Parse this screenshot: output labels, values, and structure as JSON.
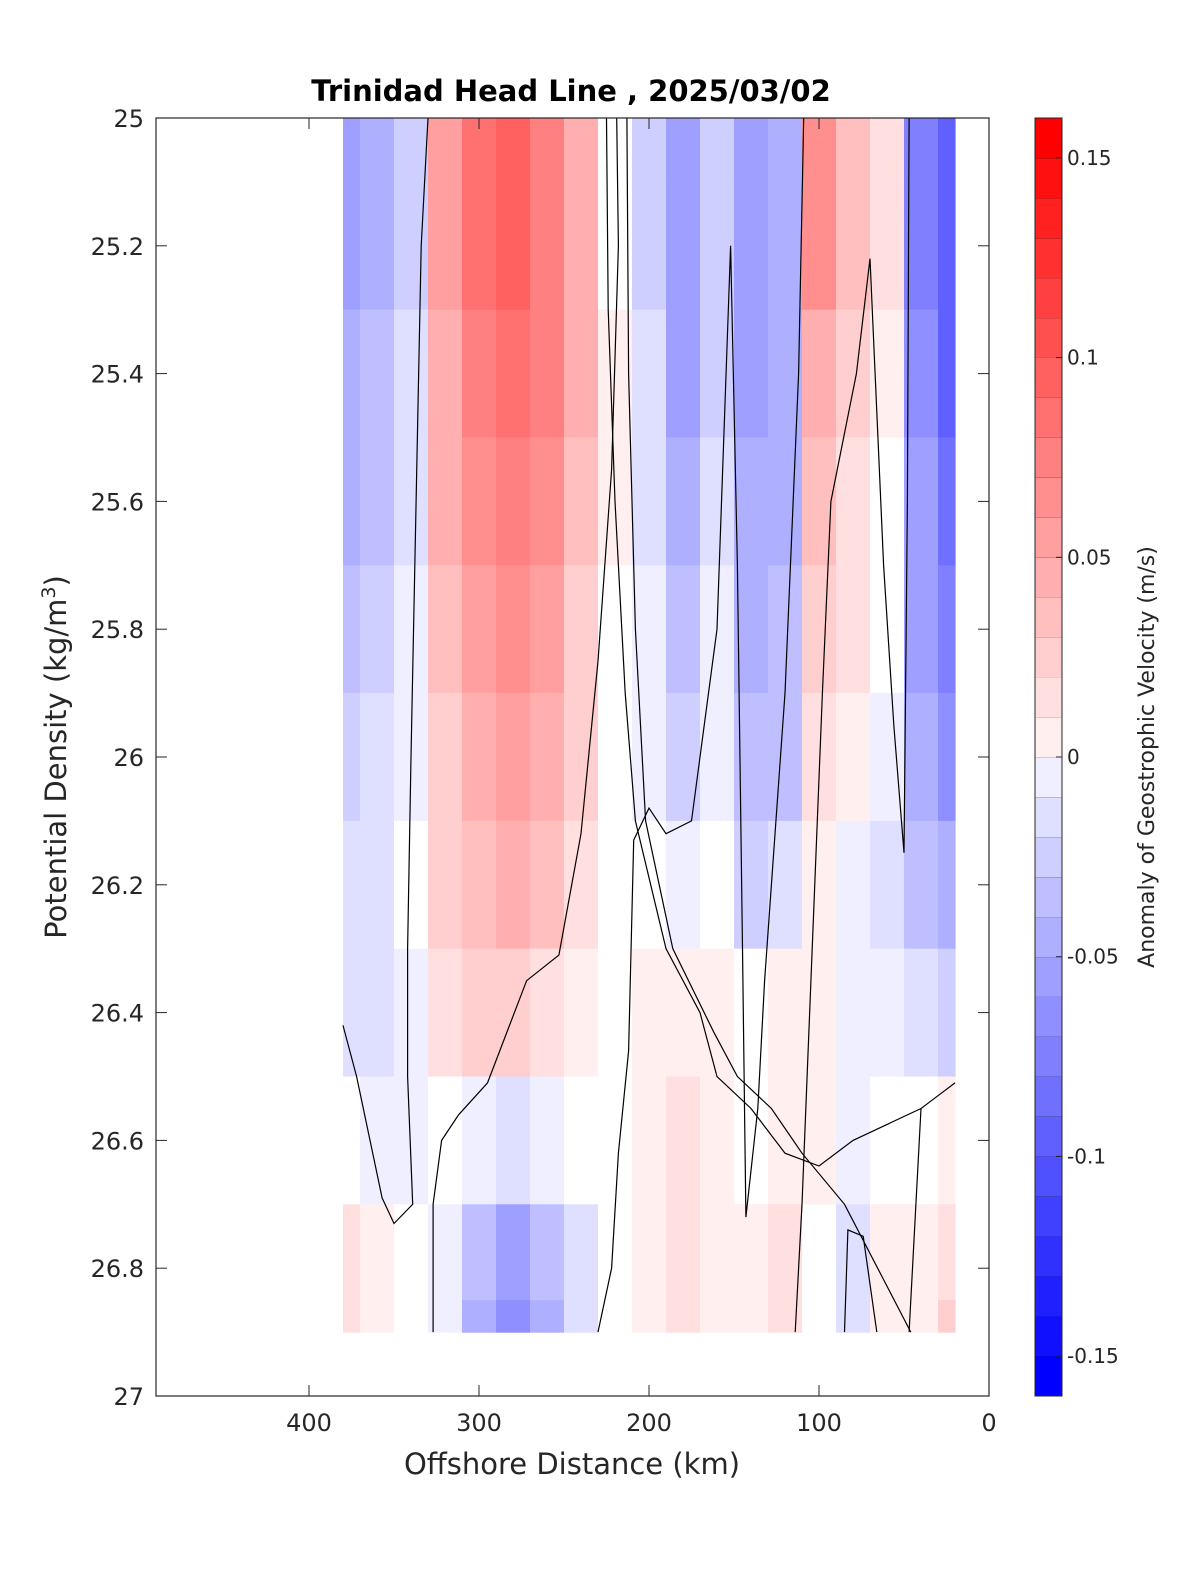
{
  "chart_data": {
    "type": "heatmap",
    "title": "Trinidad Head Line , 2025/03/02",
    "xlabel": "Offshore Distance (km)",
    "ylabel_main": "Potential Density (kg/m",
    "ylabel_sup": "3",
    "ylabel_close": ")",
    "colorbar_label": "Anomaly of Geostrophic Velocity (m/s)",
    "xlim": [
      490,
      0
    ],
    "x_reversed": true,
    "ylim": [
      25,
      27
    ],
    "y_reversed": true,
    "clim": [
      -0.16,
      0.16
    ],
    "color_step": 0.01,
    "colors": {
      "positive": "#ff0000",
      "negative": "#0000ff",
      "zero": "#ffffff",
      "contour": "#000000"
    },
    "x_ticks": [
      400,
      300,
      200,
      100,
      0
    ],
    "x_tick_labels": [
      "400",
      "300",
      "200",
      "100",
      "0"
    ],
    "y_ticks": [
      25,
      25.2,
      25.4,
      25.6,
      25.8,
      26,
      26.2,
      26.4,
      26.6,
      26.8,
      27
    ],
    "y_tick_labels": [
      "25",
      "25.2",
      "25.4",
      "25.6",
      "25.8",
      "26",
      "26.2",
      "26.4",
      "26.6",
      "26.8",
      "27"
    ],
    "colorbar_ticks": [
      0.15,
      0.1,
      0.05,
      0,
      -0.05,
      -0.1,
      -0.15
    ],
    "colorbar_tick_labels": [
      "0.15",
      "0.1",
      "0.05",
      "0",
      "-0.05",
      "-0.1",
      "-0.15"
    ],
    "grid": false,
    "data_extent": {
      "x": [
        380,
        20
      ],
      "y": [
        25,
        26.9
      ]
    },
    "x": [
      380,
      360,
      340,
      320,
      300,
      280,
      260,
      240,
      220,
      200,
      180,
      160,
      140,
      120,
      100,
      80,
      60,
      40,
      20
    ],
    "y": [
      25.0,
      25.2,
      25.4,
      25.6,
      25.8,
      26.0,
      26.2,
      26.4,
      26.6,
      26.8,
      26.9
    ],
    "z": [
      [
        -0.06,
        -0.05,
        -0.03,
        0.06,
        0.09,
        0.1,
        0.08,
        0.05,
        0.0,
        -0.03,
        -0.06,
        -0.03,
        -0.06,
        -0.05,
        0.07,
        0.04,
        0.02,
        -0.08,
        -0.1
      ],
      [
        -0.06,
        -0.05,
        -0.03,
        0.06,
        0.09,
        0.1,
        0.08,
        0.05,
        0.0,
        -0.03,
        -0.06,
        -0.03,
        -0.06,
        -0.05,
        0.07,
        0.04,
        0.02,
        -0.08,
        -0.1
      ],
      [
        -0.05,
        -0.04,
        -0.02,
        0.05,
        0.08,
        0.09,
        0.08,
        0.05,
        0.01,
        -0.02,
        -0.06,
        -0.03,
        -0.06,
        -0.05,
        0.05,
        0.03,
        0.01,
        -0.07,
        -0.1
      ],
      [
        -0.05,
        -0.04,
        -0.02,
        0.05,
        0.07,
        0.08,
        0.07,
        0.04,
        0.01,
        -0.02,
        -0.05,
        -0.02,
        -0.05,
        -0.05,
        0.04,
        0.02,
        0.0,
        -0.06,
        -0.09
      ],
      [
        -0.04,
        -0.03,
        -0.01,
        0.04,
        0.06,
        0.07,
        0.06,
        0.03,
        0.0,
        -0.01,
        -0.04,
        -0.01,
        -0.05,
        -0.04,
        0.03,
        0.02,
        0.0,
        -0.06,
        -0.08
      ],
      [
        -0.03,
        -0.02,
        -0.01,
        0.03,
        0.05,
        0.06,
        0.05,
        0.03,
        0.0,
        -0.01,
        -0.03,
        -0.01,
        -0.04,
        -0.04,
        0.02,
        0.01,
        -0.01,
        -0.05,
        -0.07
      ],
      [
        -0.02,
        -0.02,
        0.0,
        0.03,
        0.04,
        0.05,
        0.04,
        0.02,
        0.0,
        0.0,
        -0.01,
        0.0,
        -0.03,
        -0.02,
        0.01,
        -0.01,
        -0.02,
        -0.04,
        -0.05
      ],
      [
        -0.02,
        -0.02,
        -0.01,
        0.02,
        0.03,
        0.03,
        0.02,
        0.01,
        0.0,
        0.01,
        0.01,
        0.01,
        0.0,
        0.01,
        0.01,
        -0.01,
        -0.01,
        -0.02,
        -0.03
      ],
      [
        0.0,
        -0.01,
        -0.01,
        0.0,
        -0.01,
        -0.02,
        -0.01,
        0.0,
        0.0,
        0.01,
        0.02,
        0.01,
        0.0,
        0.01,
        0.01,
        -0.01,
        0.0,
        0.0,
        0.01
      ],
      [
        0.02,
        0.01,
        0.0,
        -0.01,
        -0.04,
        -0.06,
        -0.04,
        -0.02,
        0.0,
        0.01,
        0.02,
        0.01,
        0.01,
        0.02,
        0.0,
        -0.02,
        0.01,
        0.01,
        0.02
      ],
      [
        0.02,
        0.01,
        0.0,
        -0.01,
        -0.05,
        -0.07,
        -0.05,
        -0.02,
        0.0,
        0.01,
        0.02,
        0.01,
        0.01,
        0.02,
        0.0,
        -0.02,
        0.01,
        0.01,
        0.03
      ]
    ],
    "zero_contours": [
      [
        [
          330,
          25.0
        ],
        [
          334,
          25.2
        ],
        [
          337,
          25.6
        ],
        [
          340,
          26.0
        ],
        [
          342,
          26.3
        ],
        [
          342,
          26.5
        ],
        [
          339,
          26.7
        ],
        [
          350,
          26.73
        ],
        [
          357,
          26.69
        ],
        [
          372,
          26.5
        ],
        [
          380,
          26.42
        ]
      ],
      [
        [
          225,
          25.0
        ],
        [
          224,
          25.3
        ],
        [
          220,
          25.6
        ],
        [
          214,
          25.9
        ],
        [
          208,
          26.1
        ],
        [
          190,
          26.3
        ],
        [
          170,
          26.4
        ],
        [
          160,
          26.5
        ],
        [
          140,
          26.55
        ],
        [
          120,
          26.62
        ],
        [
          100,
          26.64
        ],
        [
          80,
          26.6
        ],
        [
          40,
          26.55
        ]
      ],
      [
        [
          213,
          25.0
        ],
        [
          212,
          25.4
        ],
        [
          208,
          25.8
        ],
        [
          202,
          26.1
        ],
        [
          186,
          26.3
        ],
        [
          162,
          26.43
        ],
        [
          148,
          26.5
        ],
        [
          128,
          26.55
        ],
        [
          110,
          26.62
        ],
        [
          85,
          26.7
        ],
        [
          46,
          26.9
        ]
      ],
      [
        [
          327,
          26.9
        ],
        [
          327,
          26.7
        ],
        [
          322,
          26.6
        ],
        [
          312,
          26.56
        ],
        [
          295,
          26.51
        ],
        [
          272,
          26.35
        ],
        [
          253,
          26.31
        ],
        [
          240,
          26.12
        ],
        [
          230,
          25.85
        ],
        [
          222,
          25.55
        ],
        [
          218,
          25.2
        ],
        [
          219,
          25.0
        ]
      ],
      [
        [
          230,
          26.9
        ],
        [
          222,
          26.8
        ],
        [
          218,
          26.62
        ],
        [
          212,
          26.46
        ],
        [
          209,
          26.13
        ],
        [
          200,
          26.08
        ],
        [
          190,
          26.12
        ],
        [
          175,
          26.1
        ],
        [
          160,
          25.8
        ],
        [
          152,
          25.2
        ],
        [
          148,
          25.7
        ],
        [
          145,
          26.3
        ],
        [
          143,
          26.72
        ],
        [
          136,
          26.55
        ],
        [
          132,
          26.35
        ],
        [
          120,
          25.9
        ],
        [
          112,
          25.4
        ],
        [
          109,
          25.0
        ]
      ],
      [
        [
          114,
          26.9
        ],
        [
          110,
          26.7
        ],
        [
          104,
          26.3
        ],
        [
          98,
          25.9
        ],
        [
          93,
          25.6
        ],
        [
          78,
          25.4
        ],
        [
          70,
          25.22
        ],
        [
          62,
          25.7
        ],
        [
          56,
          25.95
        ],
        [
          50,
          26.15
        ],
        [
          48,
          25.6
        ],
        [
          47,
          25.0
        ]
      ],
      [
        [
          85,
          26.9
        ],
        [
          83,
          26.74
        ],
        [
          74,
          26.75
        ],
        [
          66,
          26.9
        ]
      ],
      [
        [
          47,
          26.9
        ],
        [
          40,
          26.55
        ],
        [
          30,
          26.53
        ],
        [
          20,
          26.51
        ]
      ]
    ]
  }
}
